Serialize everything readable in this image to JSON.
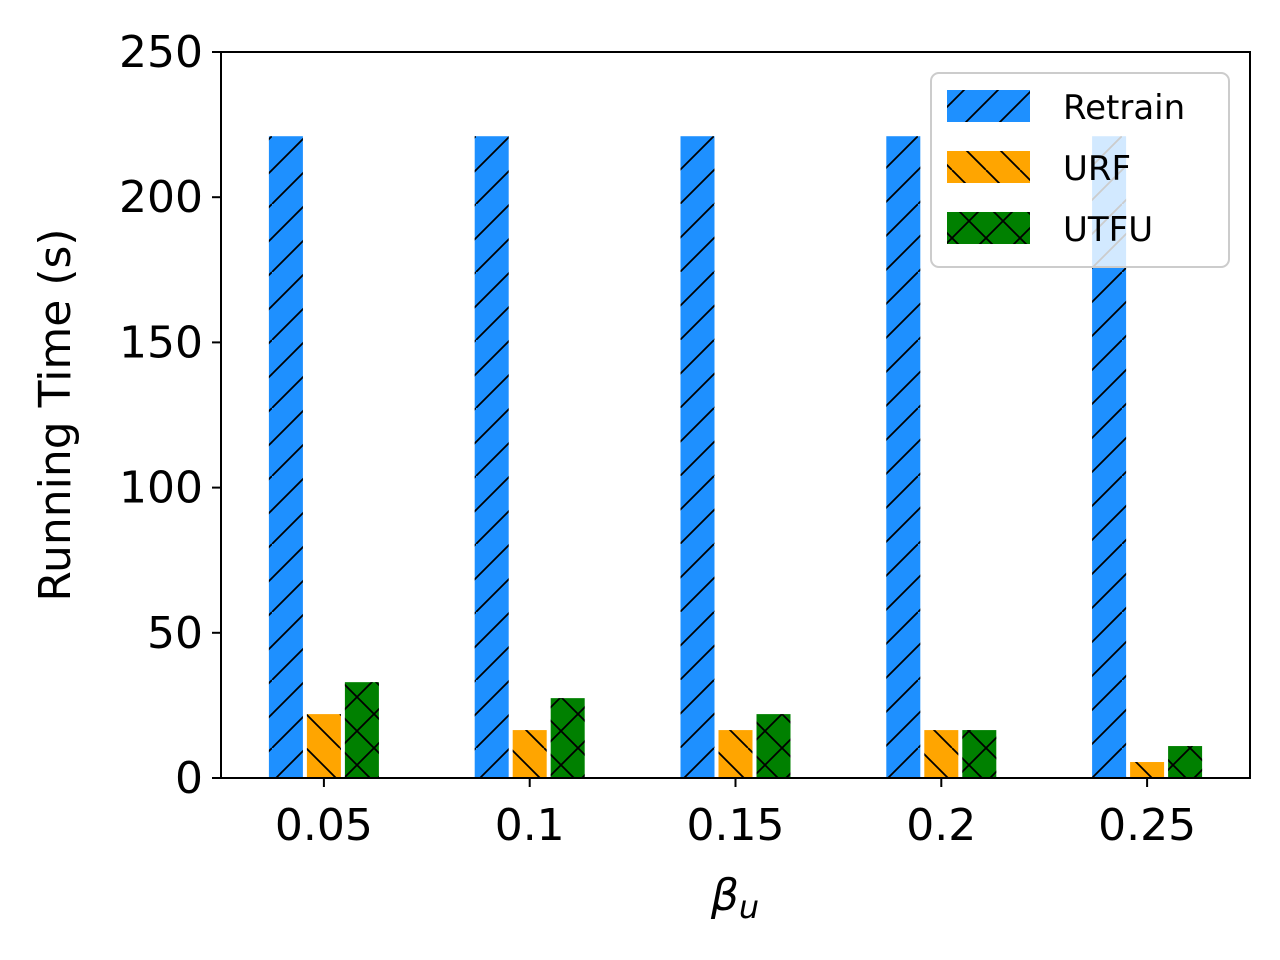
{
  "chart_data": {
    "type": "bar",
    "title": "",
    "xlabel_symbol": "β",
    "xlabel_subscript": "u",
    "ylabel": "Running Time (s)",
    "categories": [
      "0.05",
      "0.1",
      "0.15",
      "0.2",
      "0.25"
    ],
    "ylim": [
      0,
      250
    ],
    "yticks": [
      "0",
      "50",
      "100",
      "150",
      "200",
      "250"
    ],
    "grid": false,
    "legend_position": "top-right",
    "series": [
      {
        "name": "Retrain",
        "color": "#1e90ff",
        "hatch": "/",
        "values": [
          221,
          221,
          221,
          221,
          221
        ]
      },
      {
        "name": "URF",
        "color": "#ffa500",
        "hatch": "\\",
        "values": [
          22,
          16.5,
          16.5,
          16.5,
          5.5
        ]
      },
      {
        "name": "UTFU",
        "color": "#008000",
        "hatch": "x",
        "values": [
          33,
          27.5,
          22,
          16.5,
          11
        ]
      }
    ]
  }
}
